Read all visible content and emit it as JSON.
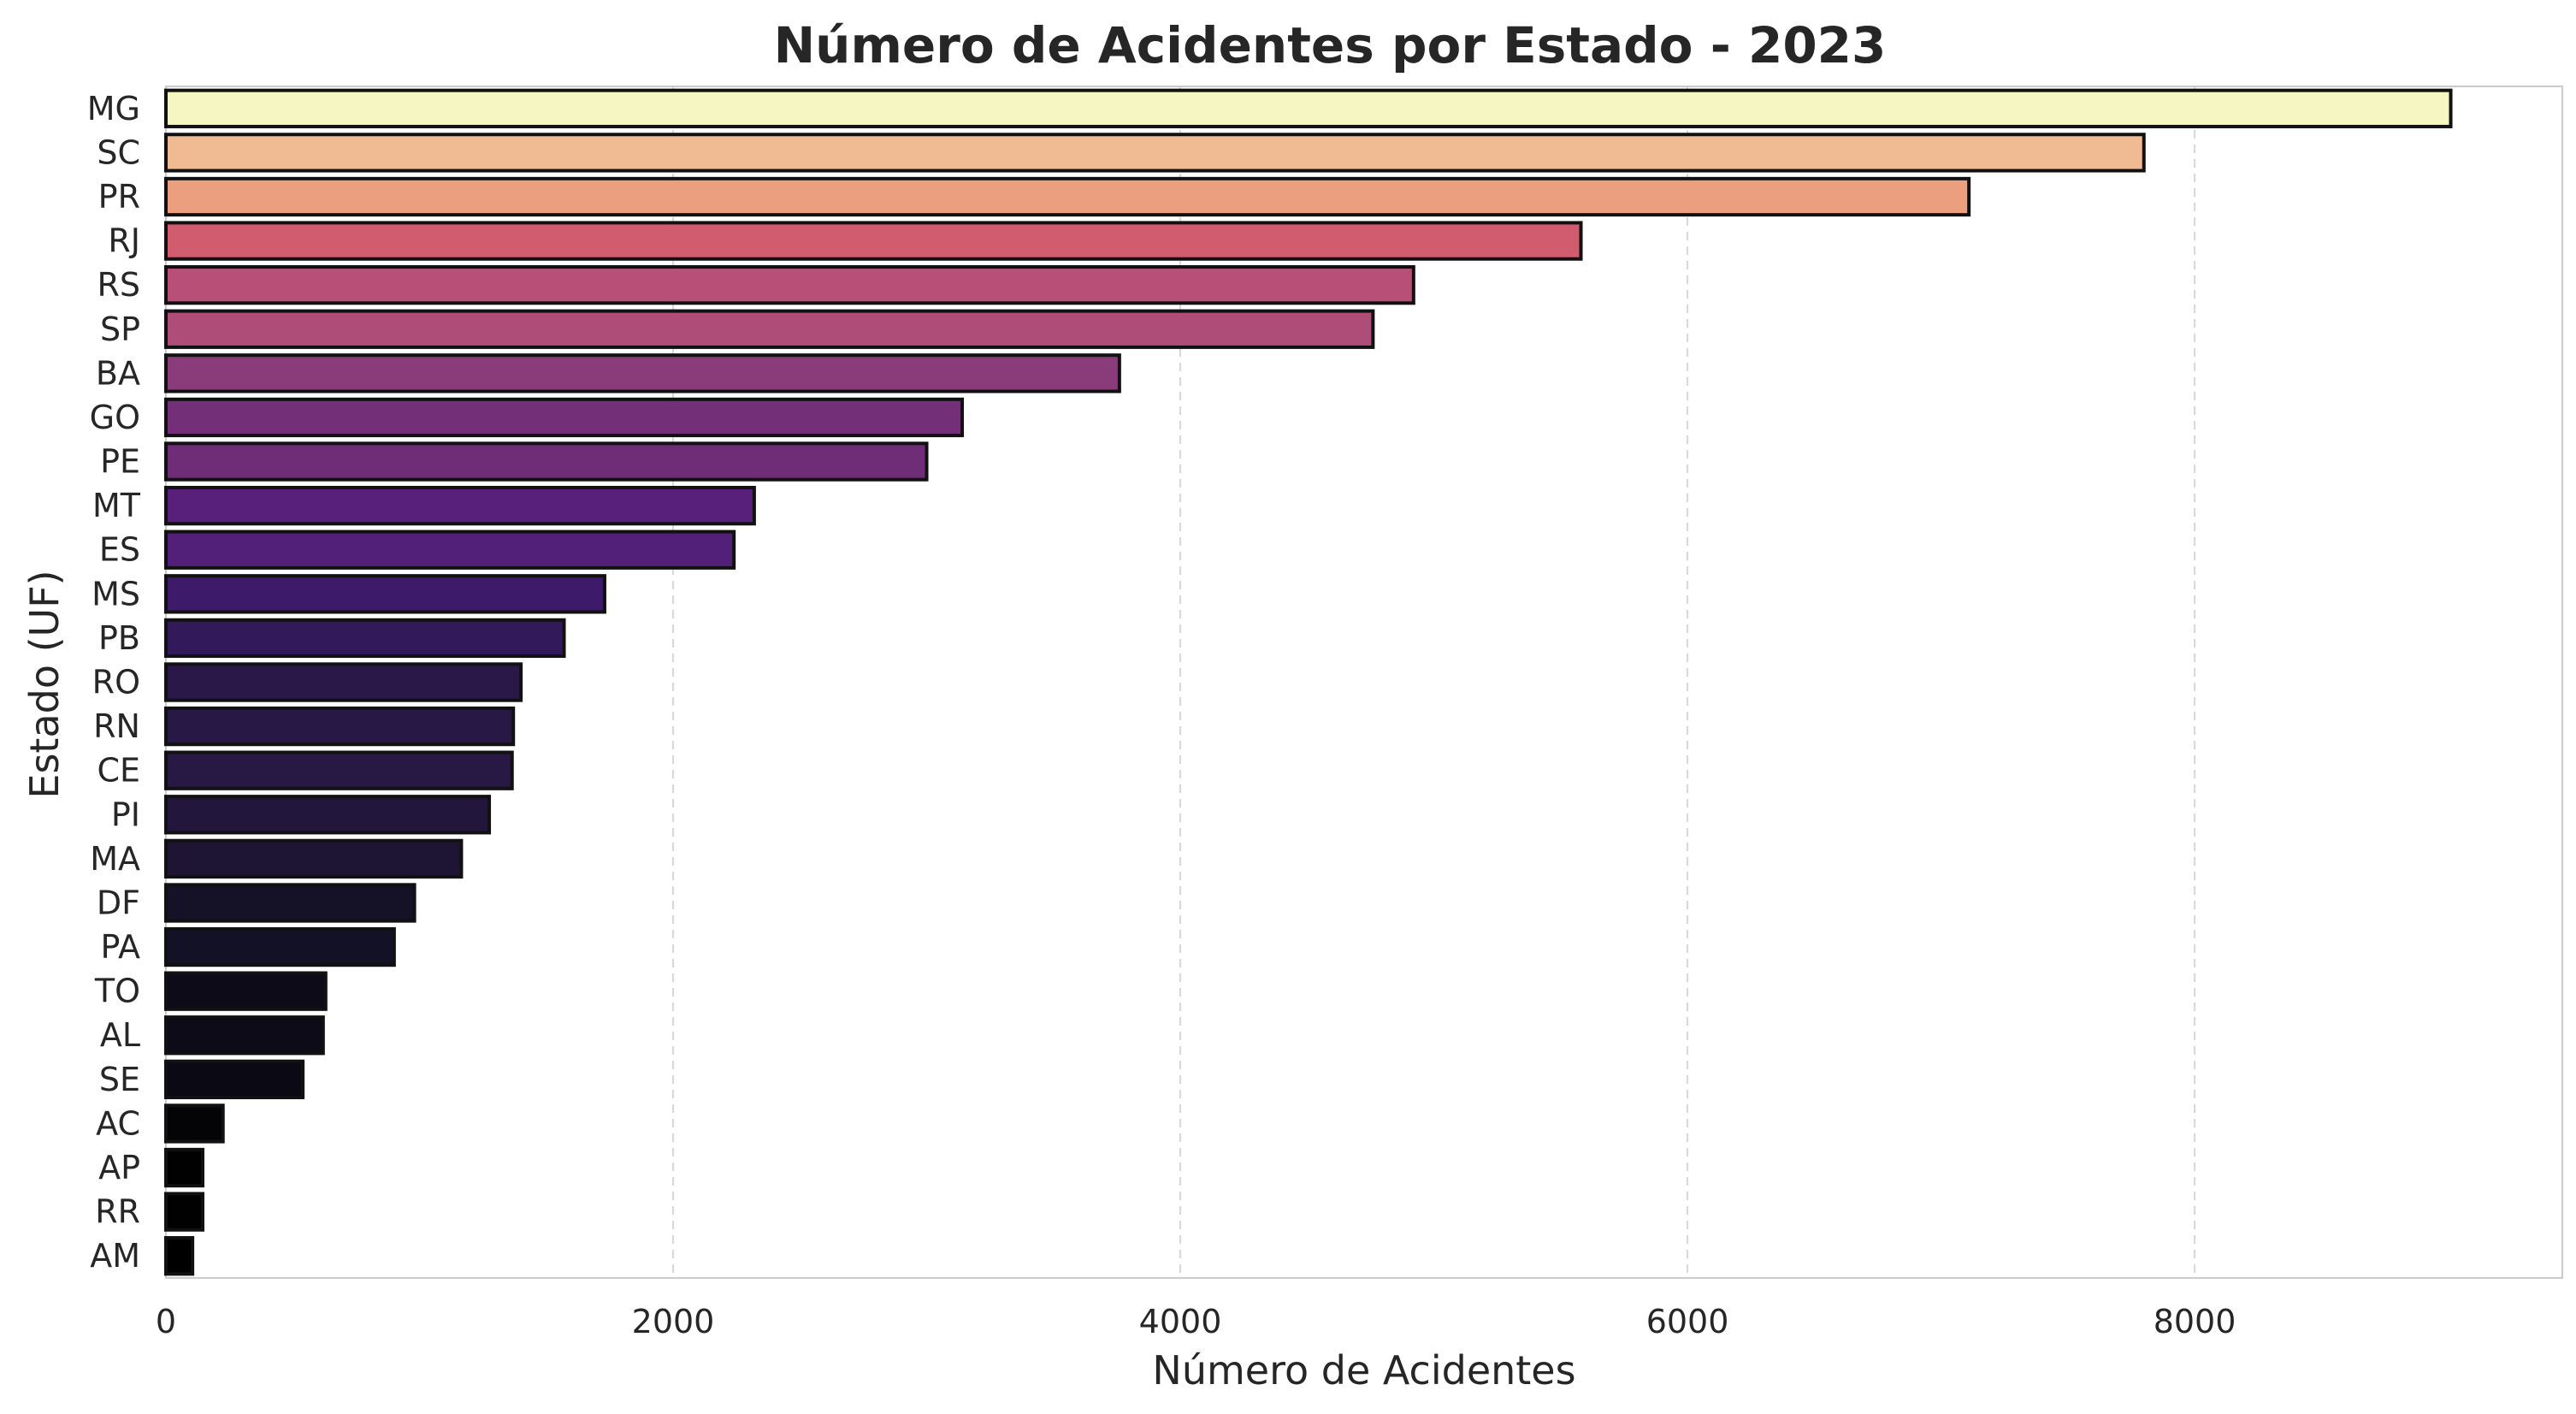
{
  "chart_data": {
    "type": "bar",
    "orientation": "horizontal",
    "title": "Número de Acidentes por Estado - 2023",
    "xlabel": "Número de Acidentes",
    "ylabel": "Estado (UF)",
    "xlim": [
      0,
      9450
    ],
    "xticks": [
      0,
      2000,
      4000,
      6000,
      8000
    ],
    "xtick_labels": [
      "0",
      "2000",
      "4000",
      "6000",
      "8000"
    ],
    "grid": "x dashed",
    "legend": "none",
    "categories": [
      "MG",
      "SC",
      "PR",
      "RJ",
      "RS",
      "SP",
      "BA",
      "GO",
      "PE",
      "MT",
      "ES",
      "MS",
      "PB",
      "RO",
      "RN",
      "CE",
      "PI",
      "MA",
      "DF",
      "PA",
      "TO",
      "AL",
      "SE",
      "AC",
      "AP",
      "RR",
      "AM"
    ],
    "values": [
      9010,
      7800,
      7110,
      5580,
      4920,
      4760,
      3760,
      3140,
      3000,
      2320,
      2240,
      1730,
      1570,
      1400,
      1370,
      1365,
      1275,
      1165,
      980,
      900,
      630,
      620,
      540,
      225,
      145,
      145,
      105
    ],
    "colors": [
      "#f6f6c2",
      "#f0bb92",
      "#eb9f7e",
      "#d15c6d",
      "#b84f76",
      "#ae4e78",
      "#8a3b7a",
      "#732f78",
      "#6f2d78",
      "#58207a",
      "#522078",
      "#3d1b6a",
      "#32195a",
      "#2a1848",
      "#281845",
      "#271844",
      "#23163d",
      "#1e1433",
      "#151127",
      "#131125",
      "#0e0b19",
      "#0d0b18",
      "#0b0914",
      "#040306",
      "#020102",
      "#020102",
      "#010001"
    ]
  }
}
